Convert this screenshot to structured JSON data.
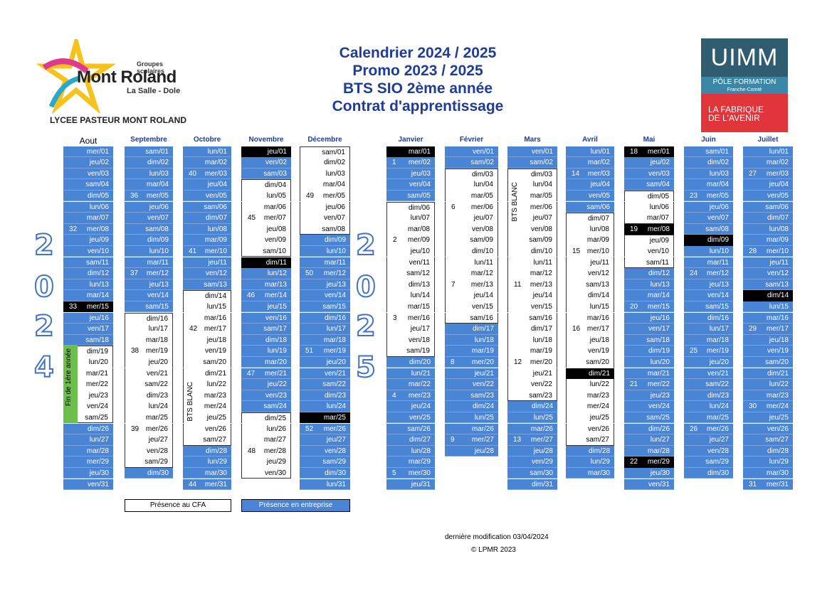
{
  "logo": {
    "small": "Groupes scolaires",
    "name": "Mont Roland",
    "sub": "La Salle - Dole",
    "lycee": "LYCEE PASTEUR MONT ROLAND"
  },
  "title": {
    "line1": "Calendrier 2024 / 2025",
    "line2": "Promo 2023 / 2025",
    "line3": "BTS SIO 2ème année",
    "line4": "Contrat d'apprentissage"
  },
  "uimm": {
    "name": "UIMM",
    "pole": "PÔLE FORMATION",
    "region": "Franche-Comté",
    "slogan1": "LA FABRIQUE",
    "slogan2": "DE L'AVENIR"
  },
  "year_left": [
    "2",
    "0",
    "2",
    "4"
  ],
  "year_right": [
    "2",
    "0",
    "2",
    "5"
  ],
  "months": [
    {
      "name": "Aout",
      "start_dow": 3,
      "days": 31,
      "white": [
        19,
        20,
        21,
        22,
        23,
        24,
        25
      ],
      "black": [
        15
      ],
      "wk": {
        "8": "32",
        "15": "33"
      }
    },
    {
      "name": "Septembre",
      "start_dow": 6,
      "days": 30,
      "white": [
        16,
        17,
        18,
        19,
        20,
        21,
        22,
        23,
        24,
        25,
        26,
        27,
        28,
        29
      ],
      "black": [],
      "wk": {
        "5": "36",
        "12": "37",
        "19": "38",
        "26": "39"
      }
    },
    {
      "name": "Octobre",
      "start_dow": 1,
      "days": 31,
      "white": [
        14,
        15,
        16,
        17,
        18,
        19,
        20,
        21,
        22,
        23,
        24,
        25,
        26,
        27
      ],
      "black": [],
      "wk": {
        "3": "40",
        "10": "41",
        "17": "42",
        "31": "44"
      }
    },
    {
      "name": "Novembre",
      "start_dow": 4,
      "days": 30,
      "white": [
        4,
        5,
        6,
        7,
        8,
        9,
        10,
        25,
        26,
        27,
        28,
        29,
        30
      ],
      "black": [
        1,
        11
      ],
      "wk": {
        "7": "45",
        "14": "46",
        "21": "47",
        "28": "48"
      }
    },
    {
      "name": "Décembre",
      "start_dow": 6,
      "days": 31,
      "white": [
        1,
        2,
        3,
        4,
        5,
        6,
        7,
        8
      ],
      "black": [
        25
      ],
      "wk": {
        "5": "49",
        "12": "50",
        "19": "51",
        "26": "52"
      }
    },
    {
      "name": "Janvier",
      "start_dow": 2,
      "days": 31,
      "white": [
        6,
        7,
        8,
        9,
        10,
        11,
        12,
        13,
        14,
        15,
        16,
        17,
        18,
        19
      ],
      "black": [
        1
      ],
      "wk": {
        "2": "1",
        "9": "2",
        "16": "3",
        "23": "4",
        "30": "5"
      }
    },
    {
      "name": "Février",
      "start_dow": 5,
      "days": 28,
      "white": [
        3,
        4,
        5,
        6,
        7,
        8,
        9,
        10,
        11,
        12,
        13,
        14,
        15,
        16
      ],
      "black": [],
      "wk": {
        "6": "6",
        "13": "7",
        "20": "8",
        "27": "9"
      }
    },
    {
      "name": "Mars",
      "start_dow": 5,
      "days": 31,
      "white": [
        3,
        4,
        5,
        6,
        7,
        8,
        9,
        10,
        11,
        12,
        13,
        14,
        15,
        16,
        17,
        18,
        19,
        20,
        21,
        22,
        23
      ],
      "black": [],
      "wk": {
        "13": "11",
        "20": "12",
        "27": "13"
      }
    },
    {
      "name": "Avril",
      "start_dow": 1,
      "days": 30,
      "white": [
        7,
        8,
        9,
        10,
        11,
        12,
        13,
        14,
        15,
        16,
        17,
        18,
        19,
        20,
        21,
        22,
        23,
        24,
        25,
        26,
        27
      ],
      "black": [
        21
      ],
      "wk": {
        "3": "14",
        "10": "15",
        "17": "16"
      }
    },
    {
      "name": "Mai",
      "start_dow": 3,
      "days": 31,
      "white": [
        5,
        6,
        7,
        9,
        10,
        11
      ],
      "black": [
        1,
        8,
        29
      ],
      "wk": {
        "1": "18",
        "8": "19",
        "15": "20",
        "22": "21",
        "29": "22"
      }
    },
    {
      "name": "Juin",
      "start_dow": 6,
      "days": 30,
      "white": [],
      "black": [
        9
      ],
      "wk": {
        "5": "23",
        "12": "24",
        "19": "25",
        "26": "26"
      }
    },
    {
      "name": "Juillet",
      "start_dow": 1,
      "days": 31,
      "white": [],
      "black": [
        14
      ],
      "wk": {
        "3": "27",
        "10": "28",
        "17": "29",
        "24": "30",
        "31": "31"
      }
    }
  ],
  "day_names": [
    "lun",
    "mar",
    "mer",
    "jeu",
    "ven",
    "sam",
    "dim"
  ],
  "annotations": {
    "fin_1ere": "Fin de 1ère année",
    "bts_blanc_oct": "BTS BLANC",
    "bts_blanc_mars": "BTS BLANC"
  },
  "legend": {
    "cfa": "Présence au CFA",
    "entreprise": "Présence en entreprise"
  },
  "footer": {
    "modif": "dernière modification   03/04/2024",
    "copyright": "© LPMR 2023"
  },
  "colors": {
    "blue": "#4a84d4",
    "title": "#1f3c96",
    "green": "#6dbf4b"
  }
}
